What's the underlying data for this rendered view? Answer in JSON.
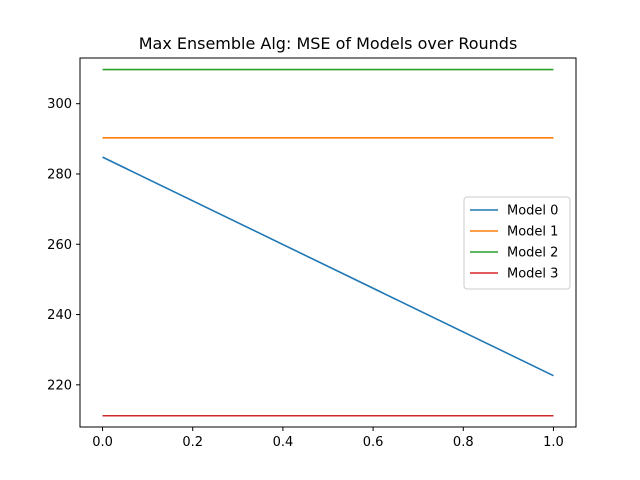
{
  "chart_data": {
    "type": "line",
    "title": "Max Ensemble Alg: MSE of Models over Rounds",
    "xlabel": "",
    "ylabel": "",
    "xlim": [
      -0.05,
      1.05
    ],
    "ylim": [
      208,
      313
    ],
    "xticks": [
      0.0,
      0.2,
      0.4,
      0.6,
      0.8,
      1.0
    ],
    "xtick_labels": [
      "0.0",
      "0.2",
      "0.4",
      "0.6",
      "0.8",
      "1.0"
    ],
    "yticks": [
      220,
      240,
      260,
      280,
      300
    ],
    "ytick_labels": [
      "220",
      "240",
      "260",
      "280",
      "300"
    ],
    "grid": false,
    "legend_placement": "center-right",
    "x": [
      0,
      1
    ],
    "series": [
      {
        "name": "Model 0",
        "color": "#1f77b4",
        "values": [
          284.8,
          222.6
        ]
      },
      {
        "name": "Model 1",
        "color": "#ff7f0e",
        "values": [
          290.3,
          290.3
        ]
      },
      {
        "name": "Model 2",
        "color": "#2ca02c",
        "values": [
          309.7,
          309.7
        ]
      },
      {
        "name": "Model 3",
        "color": "#d62728",
        "values": [
          211.2,
          211.2
        ]
      }
    ]
  }
}
